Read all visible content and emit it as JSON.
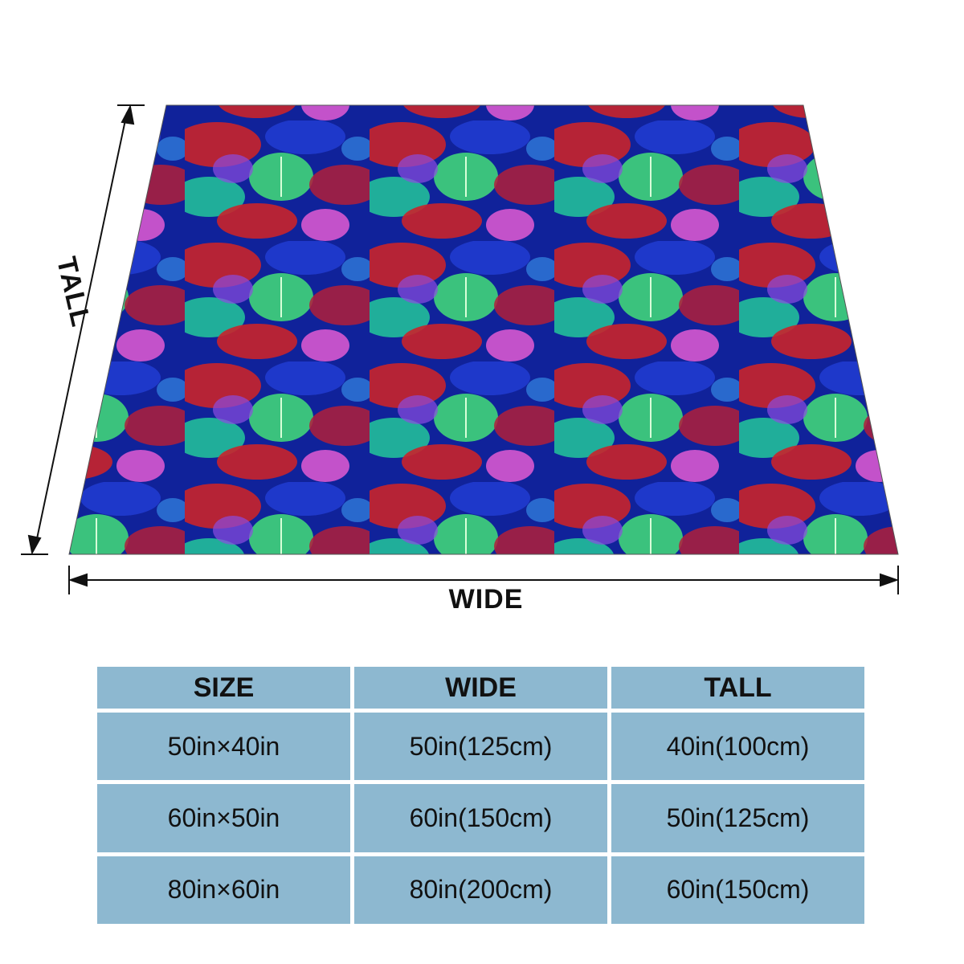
{
  "diagram": {
    "height_label": "TALL",
    "width_label": "WIDE"
  },
  "table": {
    "headers": [
      "SIZE",
      "WIDE",
      "TALL"
    ],
    "rows": [
      [
        "50in×40in",
        "50in(125cm)",
        "40in(100cm)"
      ],
      [
        "60in×50in",
        "60in(150cm)",
        "50in(125cm)"
      ],
      [
        "80in×60in",
        "80in(200cm)",
        "60in(150cm)"
      ]
    ]
  },
  "colors": {
    "table_cell": "#8db8d0",
    "pattern": [
      "#1a1f9a",
      "#0b2a8c",
      "#c8242b",
      "#b01e3a",
      "#3fd47a",
      "#23c79a",
      "#e35bd2",
      "#8a4be0",
      "#2f7ad9"
    ]
  }
}
